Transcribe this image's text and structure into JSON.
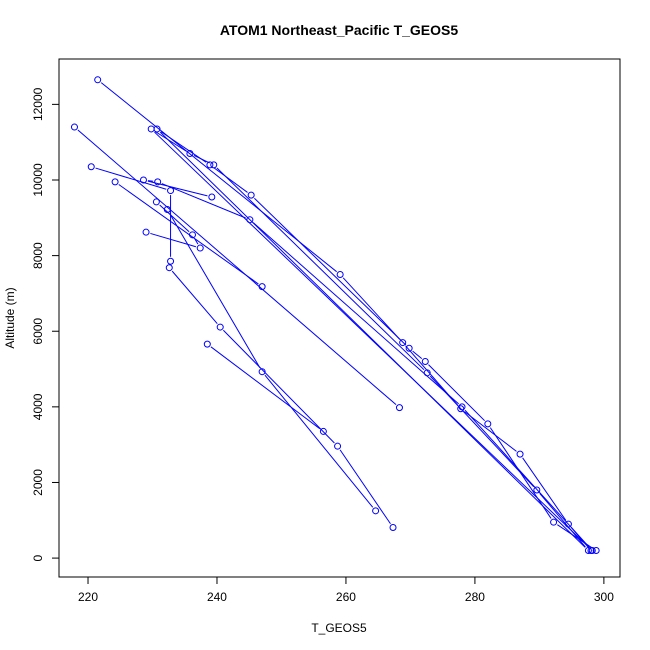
{
  "chart_data": {
    "type": "line",
    "title": "ATOM1 Northeast_Pacific T_GEOS5",
    "xlabel": "T_GEOS5",
    "ylabel": "Altitude (m)",
    "xlim": [
      215.5,
      302.5
    ],
    "ylim": [
      -500,
      13200
    ],
    "x_ticks": [
      220,
      240,
      260,
      280,
      300
    ],
    "y_ticks": [
      0,
      2000,
      4000,
      6000,
      8000,
      10000,
      12000
    ],
    "grid": false,
    "legend": "none",
    "marker": "open-circle",
    "color": "#0000ff",
    "series": [
      {
        "points": [
          {
            "x": 221.5,
            "y": 12650
          },
          {
            "x": 259.1,
            "y": 7500
          },
          {
            "x": 268.8,
            "y": 5700
          },
          {
            "x": 277.8,
            "y": 3950
          },
          {
            "x": 287.0,
            "y": 2750
          },
          {
            "x": 294.5,
            "y": 900
          },
          {
            "x": 298.0,
            "y": 200
          },
          {
            "x": 298.8,
            "y": 200
          },
          {
            "x": 292.2,
            "y": 950
          },
          {
            "x": 282.0,
            "y": 3550
          },
          {
            "x": 272.3,
            "y": 5200
          },
          {
            "x": 269.8,
            "y": 5550
          },
          {
            "x": 245.3,
            "y": 9600
          },
          {
            "x": 238.9,
            "y": 10400
          },
          {
            "x": 230.7,
            "y": 11350
          },
          {
            "x": 297.6,
            "y": 200
          },
          {
            "x": 289.6,
            "y": 1800
          },
          {
            "x": 272.6,
            "y": 4900
          },
          {
            "x": 239.5,
            "y": 10400
          },
          {
            "x": 235.8,
            "y": 10700
          },
          {
            "x": 229.8,
            "y": 11350
          },
          {
            "x": 298.2,
            "y": 200
          },
          {
            "x": 278.0,
            "y": 4000
          },
          {
            "x": 245.1,
            "y": 8950
          },
          {
            "x": 230.8,
            "y": 9950
          },
          {
            "x": 228.6,
            "y": 10000
          },
          {
            "x": 239.2,
            "y": 9550
          }
        ]
      },
      {
        "points": [
          {
            "x": 217.9,
            "y": 11400
          },
          {
            "x": 268.3,
            "y": 3980
          }
        ]
      },
      {
        "points": [
          {
            "x": 220.5,
            "y": 10350
          },
          {
            "x": 232.8,
            "y": 9720
          },
          {
            "x": 232.8,
            "y": 7850
          }
        ]
      },
      {
        "points": [
          {
            "x": 224.2,
            "y": 9950
          },
          {
            "x": 247.0,
            "y": 7180
          }
        ]
      },
      {
        "points": [
          {
            "x": 230.6,
            "y": 9420
          },
          {
            "x": 236.2,
            "y": 8550
          },
          {
            "x": 237.4,
            "y": 8200
          },
          {
            "x": 229.0,
            "y": 8620
          }
        ]
      },
      {
        "points": [
          {
            "x": 232.6,
            "y": 7680
          },
          {
            "x": 240.5,
            "y": 6110
          },
          {
            "x": 258.7,
            "y": 2960
          },
          {
            "x": 267.3,
            "y": 810
          }
        ]
      },
      {
        "points": [
          {
            "x": 232.3,
            "y": 9220
          },
          {
            "x": 247.0,
            "y": 4930
          },
          {
            "x": 264.6,
            "y": 1250
          }
        ]
      },
      {
        "points": [
          {
            "x": 238.5,
            "y": 5660
          },
          {
            "x": 256.5,
            "y": 3350
          }
        ]
      }
    ]
  }
}
